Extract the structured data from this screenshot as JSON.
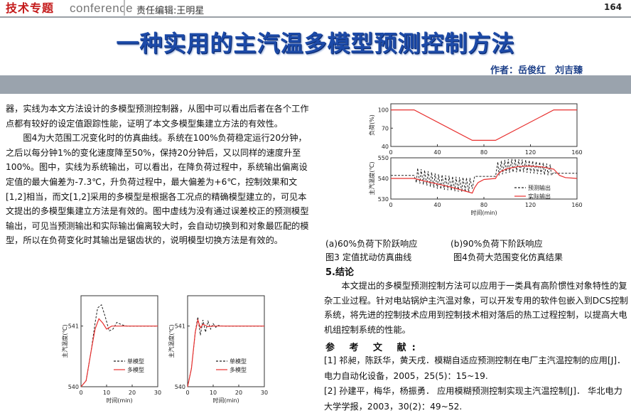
{
  "header": {
    "section": "技术专题",
    "section_en": "conference",
    "editor": "责任编辑:王明星",
    "page_number": "164"
  },
  "article": {
    "title": "一种实用的主汽温多模型预测控制方法",
    "authors": "作者：岳俊红　刘吉臻"
  },
  "body_left": [
    "器，实线为本文方法设计的多模型预测控制器，从图中可以看出后者在各个工作点都有较好的设定值跟踪性能，证明了本文多模型集建立方法的有效性。",
    "图4为大范围工况变化时的仿真曲线。系统在100%负荷稳定运行20分钟，之后以每分钟1%的变化速度降至50%，保持20分钟后，又以同样的速度升至100%。图中，实线为系统输出，可以看出，在降负荷过程中，系统输出偏离设定值的最大偏差为-7.3℃，升负荷过程中，最大偏差为+6℃，控制效果和文[1,2]相当，而文[1,2]采用的多模型是根据各工况点的精确模型建立的，可见本文提出的多模型集建立方法是有效的。图中虚线为没有通过误差校正的预测模型输出，可见当预测输出和实际输出偏离较大时，会自动切换到和对象最匹配的模型，所以在负荷变化时其输出是锯齿状的，说明模型切换方法是有效的。"
  ],
  "figures": {
    "caption_a": "(a)60%负荷下阶跃响应",
    "caption_b": "(b)90%负荷下阶跃响应",
    "caption_fig3": "图3 定值扰动仿真曲线",
    "caption_fig4": "图4负荷大范围变化仿真结果"
  },
  "conclusion": {
    "heading": "5.结论",
    "text": "本文提出的多模型预测控制方法可以应用于一类具有高阶惯性对象特性的复杂工业过程。针对电站锅炉主汽温对象，可以开发专用的软件包嵌入到DCS控制系统，将先进的控制技术应用到控制技术相对落后的热工过程控制，以提高大电机组控制系统的性能。"
  },
  "references": {
    "heading": "参 考 文 献:",
    "items": [
      "[1] 祁昶，陈跃华，黄天戌．模糊自适应预测控制在电厂主汽温控制的应用[J]．电力自动化设备，2005，25(5)：15~19.",
      "[2] 孙建平，梅华，杨振勇． 应用模糊预测控制实现主汽温控制[J]． 华北电力大学学报，2003，30(2)：49~52."
    ]
  },
  "chart_data": [
    {
      "type": "line",
      "id": "fig3a",
      "xlabel": "时间(min)",
      "ylabel": "主汽温度(℃)",
      "x_ticks": [
        0,
        10,
        20,
        30
      ],
      "y_ticks": [
        540,
        541
      ],
      "xlim": [
        0,
        30
      ],
      "ylim": [
        540,
        541.5
      ],
      "legend": "bottom-right",
      "series": [
        {
          "name": "单模型",
          "style": "dashed",
          "color": "#222222",
          "x": [
            0,
            2,
            4,
            5.5,
            6.5,
            8,
            9.5,
            11,
            12.5,
            14,
            16,
            18,
            20,
            25,
            30
          ],
          "y": [
            540,
            540.1,
            540.6,
            541.05,
            541.3,
            541.35,
            541.15,
            540.92,
            540.95,
            541.06,
            541.02,
            541.0,
            541.0,
            541.0,
            541.0
          ]
        },
        {
          "name": "多模型",
          "style": "solid",
          "color": "#e8302f",
          "x": [
            0,
            2,
            4,
            5.5,
            7,
            8.5,
            10,
            12,
            14,
            18,
            22,
            30
          ],
          "y": [
            540,
            540.1,
            540.6,
            540.95,
            541.12,
            541.05,
            540.95,
            541.0,
            541.0,
            541.0,
            541.0,
            541.0
          ]
        }
      ]
    },
    {
      "type": "line",
      "id": "fig3b",
      "xlabel": "时间(min)",
      "ylabel": "主汽温度(℃)",
      "x_ticks": [
        0,
        10,
        20,
        30
      ],
      "y_ticks": [
        540,
        541
      ],
      "xlim": [
        0,
        30
      ],
      "ylim": [
        540,
        541.5
      ],
      "legend": "bottom-right",
      "series": [
        {
          "name": "单模型",
          "style": "dashed",
          "color": "#222222",
          "x": [
            0,
            1.5,
            3,
            4,
            5,
            6,
            7,
            8,
            9,
            10,
            11,
            12,
            14,
            18,
            30
          ],
          "y": [
            540,
            540.3,
            540.9,
            541.15,
            540.85,
            541.1,
            540.9,
            541.08,
            540.95,
            541.04,
            540.98,
            541.01,
            541.0,
            541.0,
            541.0
          ]
        },
        {
          "name": "多模型",
          "style": "solid",
          "color": "#e8302f",
          "x": [
            0,
            1.5,
            3,
            4,
            5,
            6,
            8,
            10,
            14,
            30
          ],
          "y": [
            540,
            540.3,
            540.9,
            541.1,
            540.97,
            541.03,
            540.99,
            541.0,
            541.0,
            541.0
          ]
        }
      ]
    },
    {
      "type": "line",
      "id": "fig4-load",
      "xlabel": "",
      "ylabel": "负荷(%)",
      "x_ticks": [
        0,
        40,
        80,
        120,
        160
      ],
      "y_ticks": [
        40,
        70,
        100
      ],
      "xlim": [
        0,
        160
      ],
      "ylim": [
        40,
        110
      ],
      "series": [
        {
          "name": "",
          "style": "solid",
          "color": "#e8302f",
          "x": [
            0,
            20,
            70,
            90,
            140,
            160
          ],
          "y": [
            100,
            100,
            50,
            50,
            100,
            100
          ]
        }
      ]
    },
    {
      "type": "line",
      "id": "fig4-temp",
      "xlabel": "时间(min)",
      "ylabel": "主汽温度(℃)",
      "x_ticks": [
        0,
        40,
        80,
        120,
        160
      ],
      "y_ticks": [
        530,
        540,
        550
      ],
      "xlim": [
        0,
        160
      ],
      "ylim": [
        530,
        550
      ],
      "legend": "bottom-right",
      "series": [
        {
          "name": "预测输出",
          "style": "dashed",
          "color": "#222222",
          "x": [
            0,
            20,
            22,
            23,
            25,
            26,
            28,
            29,
            31,
            32,
            34,
            35,
            37,
            38,
            40,
            41,
            43,
            44,
            46,
            47,
            49,
            50,
            52,
            53,
            55,
            56,
            58,
            59,
            61,
            62,
            64,
            65,
            67,
            68,
            70,
            72,
            90,
            92,
            93,
            95,
            96,
            98,
            99,
            101,
            102,
            104,
            105,
            107,
            108,
            110,
            111,
            113,
            114,
            116,
            117,
            119,
            120,
            122,
            123,
            125,
            126,
            128,
            129,
            131,
            132,
            134,
            135,
            137,
            138,
            140,
            142,
            160
          ],
          "y": [
            541.5,
            541.5,
            538,
            545,
            537.5,
            544.5,
            537,
            544,
            536.5,
            543.5,
            536,
            543,
            535.5,
            542.5,
            535,
            542,
            534.8,
            541.8,
            534.5,
            541.5,
            534.3,
            541.3,
            534,
            541,
            533.8,
            540.8,
            533.6,
            540.6,
            533.5,
            540.5,
            533.4,
            540.3,
            533.3,
            540.2,
            535,
            541,
            541,
            548,
            541.5,
            548.5,
            542,
            549,
            542.5,
            549.3,
            542.8,
            549.5,
            543,
            549.5,
            543,
            549.3,
            543,
            549.2,
            543,
            549,
            542.8,
            548.8,
            542.6,
            548.5,
            542.4,
            548.2,
            542.2,
            548,
            542,
            547.6,
            541.8,
            547.2,
            541.6,
            546.8,
            541.5,
            543,
            542.5,
            542.5
          ]
        },
        {
          "name": "实际输出",
          "style": "solid",
          "color": "#e8302f",
          "x": [
            0,
            20,
            30,
            40,
            50,
            60,
            70,
            72,
            75,
            80,
            90,
            92,
            95,
            100,
            110,
            120,
            130,
            140,
            145,
            150,
            160
          ],
          "y": [
            540,
            540,
            538.6,
            537.3,
            536,
            534.5,
            532.9,
            535.5,
            538,
            539.5,
            540,
            542,
            543.5,
            544.8,
            545.8,
            546,
            545.6,
            544.5,
            541.5,
            540.4,
            540
          ]
        }
      ]
    }
  ]
}
